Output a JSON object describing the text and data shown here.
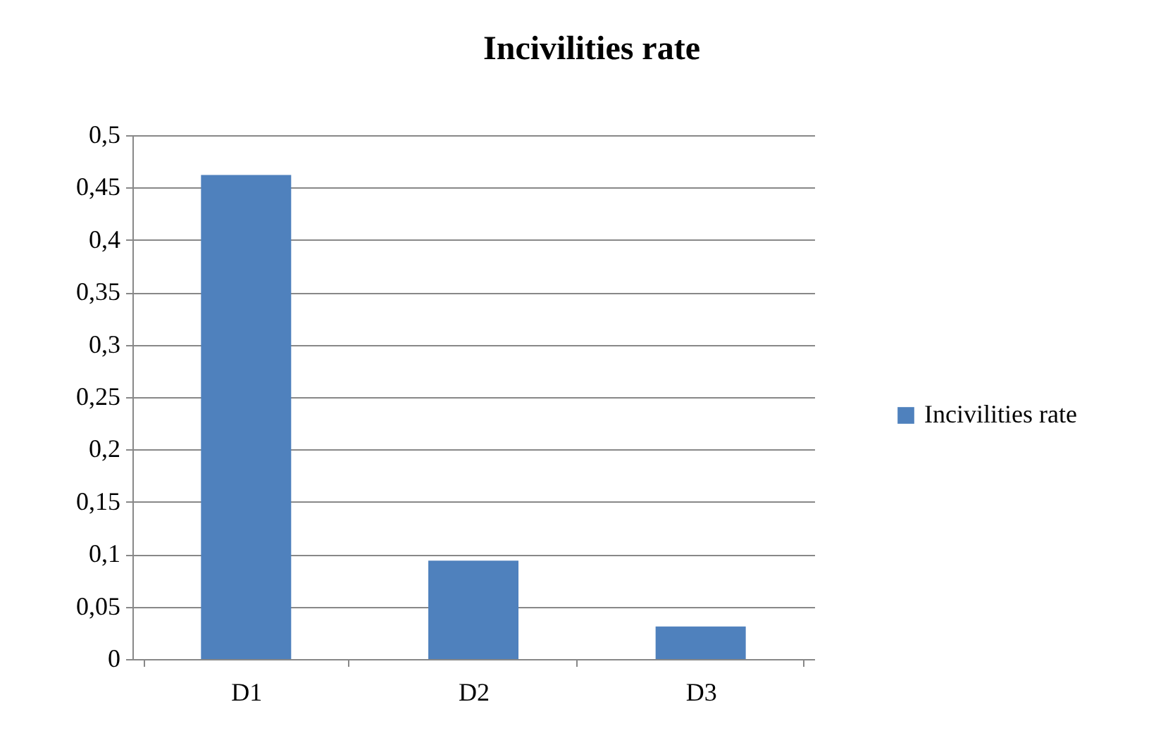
{
  "chart_data": {
    "type": "bar",
    "title": "Incivilities rate",
    "categories": [
      "D1",
      "D2",
      "D3"
    ],
    "series": [
      {
        "name": "Incivilities rate",
        "color": "#4f81bd",
        "values": [
          0.462,
          0.094,
          0.031
        ]
      }
    ],
    "ylim": [
      0,
      0.5
    ],
    "yticks": [
      0,
      {
        "value": 0.05,
        "label": "0,05"
      },
      {
        "value": 0.1,
        "label": "0,1"
      },
      {
        "value": 0.15,
        "label": "0,15"
      },
      {
        "value": 0.2,
        "label": "0,2"
      },
      {
        "value": 0.25,
        "label": "0,25"
      },
      {
        "value": 0.3,
        "label": "0,3"
      },
      {
        "value": 0.35,
        "label": "0,35"
      },
      {
        "value": 0.4,
        "label": "0,4"
      },
      {
        "value": 0.45,
        "label": "0,45"
      },
      {
        "value": 0.5,
        "label": "0,5"
      }
    ],
    "grid": "y",
    "legend": "right"
  }
}
